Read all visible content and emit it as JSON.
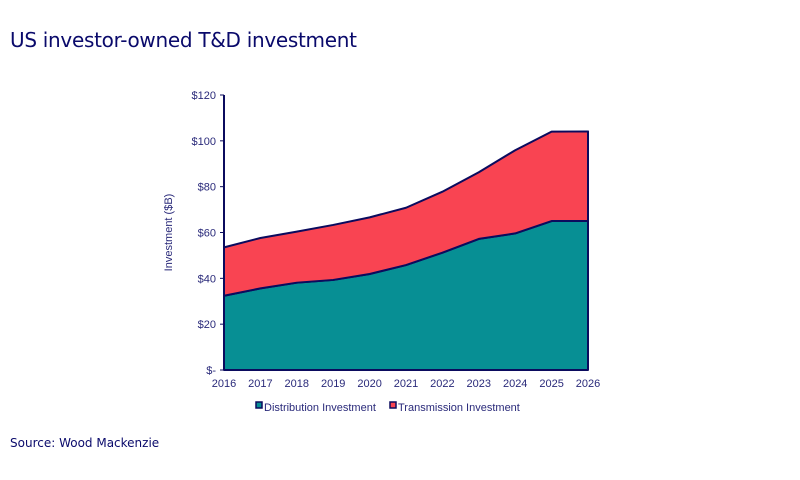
{
  "title": "US investor-owned T&D investment",
  "source": "Source: Wood Mackenzie",
  "chart_data": {
    "type": "area",
    "stacked": true,
    "title": "US investor-owned T&D investment",
    "xlabel": "",
    "ylabel": "Investment ($B)",
    "categories": [
      "2016",
      "2017",
      "2018",
      "2019",
      "2020",
      "2021",
      "2022",
      "2023",
      "2024",
      "2025",
      "2026"
    ],
    "ylim": [
      0,
      120
    ],
    "yticks": [
      0,
      20,
      40,
      60,
      80,
      100,
      120
    ],
    "ytick_labels": [
      "$-",
      "$20",
      "$40",
      "$60",
      "$80",
      "$100",
      "$120"
    ],
    "grid": false,
    "legend_position": "bottom",
    "series": [
      {
        "name": "Distribution Investment",
        "color": "#078f94",
        "values": [
          32.4,
          35.6,
          38.1,
          39.3,
          41.9,
          45.8,
          51.2,
          57.2,
          59.6,
          65.0,
          65.0
        ]
      },
      {
        "name": "Transmission Investment",
        "color": "#f94452",
        "values": [
          21.1,
          22.0,
          22.3,
          24.0,
          24.7,
          25.0,
          26.6,
          29.1,
          36.3,
          39.0,
          39.1
        ]
      }
    ],
    "outline_color": "#0b0b5e"
  }
}
